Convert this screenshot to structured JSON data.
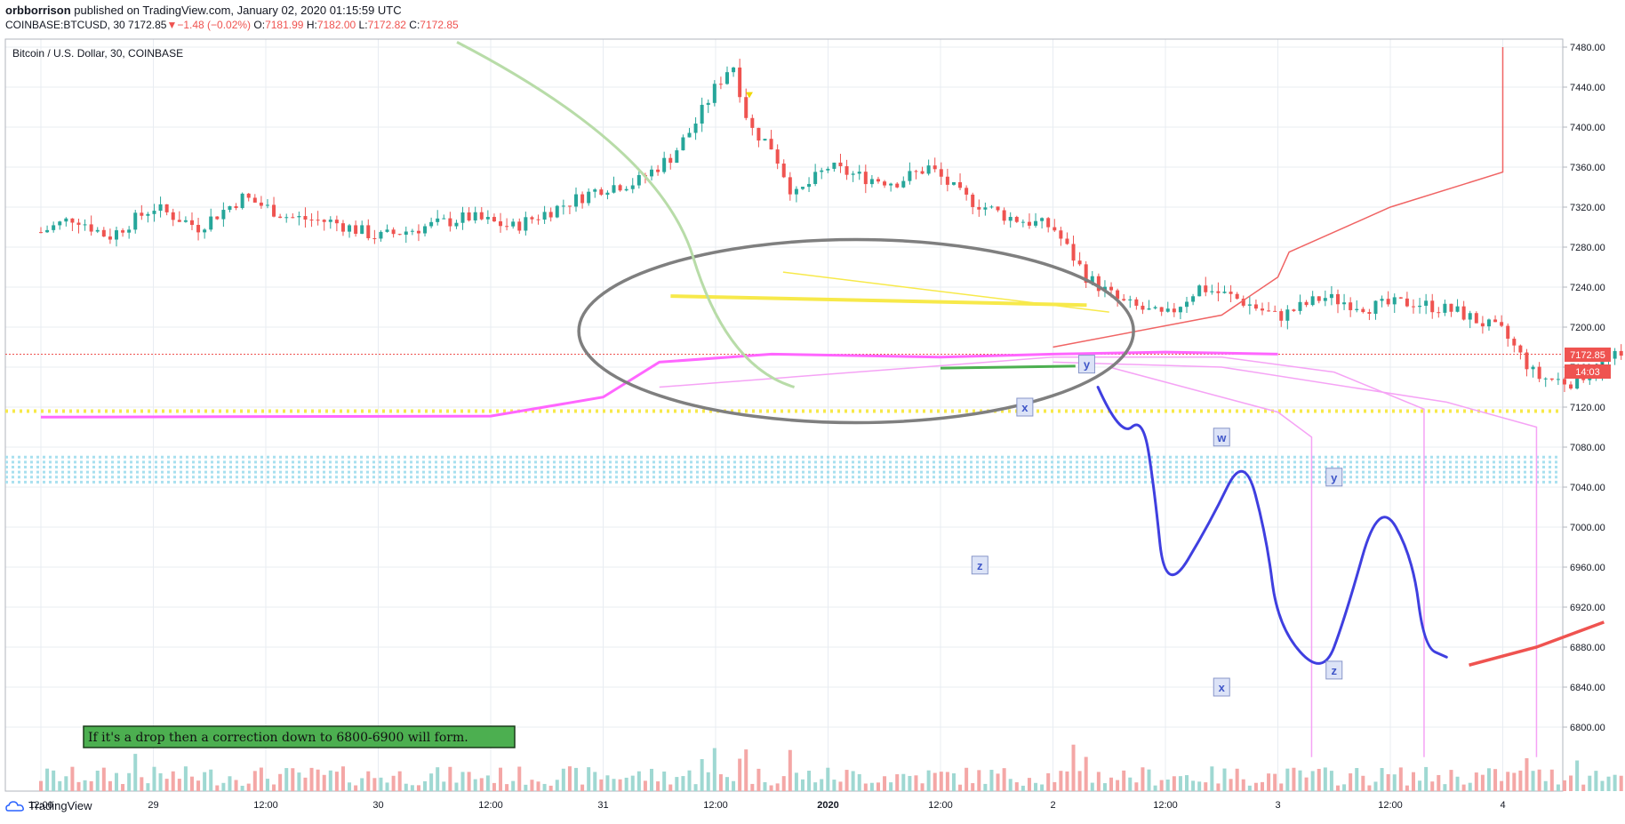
{
  "header": {
    "publisher": "orbborrison",
    "published_text": "published on TradingView.com, January 02, 2020 01:15:59 UTC",
    "symbol_line": "COINBASE:BTCUSD, 30",
    "last": "7172.85",
    "change": "−1.48 (−0.02%)",
    "o_label": "O:",
    "o_val": "7181.99",
    "h_label": "H:",
    "h_val": "7182.00",
    "l_label": "L:",
    "l_val": "7172.82",
    "c_label": "C:",
    "c_val": "7172.85"
  },
  "chart_title": "Bitcoin / U.S. Dollar, 30, COINBASE",
  "footer": {
    "brand": "TradingView"
  },
  "colors": {
    "up": "#26a69a",
    "down": "#ef5350",
    "grid": "#e8ecf2",
    "wave": "#3f3fe0",
    "ellipse": "#7f7f7f",
    "trend_yellow": "#f7e94a",
    "magenta": "#ff66ff",
    "red_curve": "#f06464",
    "green_line": "#4caf50"
  },
  "annotation": "If it's a drop then a correction down to 6800-6900 will form.",
  "wave_labels": [
    "x",
    "y",
    "z",
    "w",
    "x",
    "y",
    "z"
  ],
  "price_badge": {
    "price": "7172.85",
    "countdown": "14:03"
  },
  "chart_data": {
    "type": "candlestick",
    "symbol": "BTCUSD",
    "interval": "30",
    "y_ticks": [
      7480,
      7440,
      7400,
      7360,
      7320,
      7280,
      7240,
      7200,
      7160,
      7120,
      7080,
      7040,
      7000,
      6960,
      6920,
      6880,
      6840,
      6800
    ],
    "x_ticks": [
      "12:00",
      "29",
      "12:00",
      "30",
      "12:00",
      "31",
      "12:00",
      "2020",
      "12:00",
      "2",
      "12:00",
      "3",
      "12:00",
      "4"
    ],
    "ylim": [
      6765,
      7490
    ],
    "last_price": 7172.85,
    "dotted_support": 7116,
    "dotted_band": [
      7045,
      7070
    ],
    "close_path": [
      [
        0,
        7295
      ],
      [
        0.3,
        7310
      ],
      [
        0.6,
        7290
      ],
      [
        1.0,
        7320
      ],
      [
        1.4,
        7300
      ],
      [
        1.8,
        7330
      ],
      [
        2.2,
        7310
      ],
      [
        2.6,
        7305
      ],
      [
        3.0,
        7290
      ],
      [
        3.4,
        7300
      ],
      [
        3.8,
        7310
      ],
      [
        4.2,
        7300
      ],
      [
        4.6,
        7320
      ],
      [
        5.0,
        7340
      ],
      [
        5.3,
        7345
      ],
      [
        5.6,
        7370
      ],
      [
        5.8,
        7400
      ],
      [
        6.0,
        7440
      ],
      [
        6.15,
        7465
      ],
      [
        6.3,
        7400
      ],
      [
        6.5,
        7380
      ],
      [
        6.7,
        7330
      ],
      [
        7.0,
        7360
      ],
      [
        7.3,
        7350
      ],
      [
        7.6,
        7345
      ],
      [
        7.9,
        7360
      ],
      [
        8.2,
        7330
      ],
      [
        8.6,
        7310
      ],
      [
        9.0,
        7300
      ],
      [
        9.3,
        7250
      ],
      [
        9.6,
        7225
      ],
      [
        10.0,
        7210
      ],
      [
        10.3,
        7240
      ],
      [
        10.6,
        7230
      ],
      [
        11.0,
        7210
      ],
      [
        11.4,
        7230
      ],
      [
        11.8,
        7220
      ],
      [
        12.2,
        7225
      ],
      [
        12.6,
        7215
      ],
      [
        13.0,
        7195
      ],
      [
        13.3,
        7150
      ],
      [
        13.6,
        7145
      ],
      [
        14.0,
        7170
      ],
      [
        14.4,
        7160
      ],
      [
        14.7,
        7190
      ],
      [
        15.0,
        7210
      ],
      [
        15.4,
        7200
      ],
      [
        15.8,
        7190
      ],
      [
        16.2,
        7205
      ],
      [
        16.6,
        7210
      ],
      [
        17.0,
        7215
      ],
      [
        17.4,
        7220
      ],
      [
        17.8,
        7225
      ],
      [
        18.2,
        7200
      ],
      [
        18.5,
        7165
      ],
      [
        18.7,
        7172.85
      ]
    ],
    "trend_yellow_upper": [
      [
        6.6,
        7255
      ],
      [
        9.5,
        7215
      ]
    ],
    "trend_yellow_lower": [
      [
        5.6,
        7231
      ],
      [
        9.3,
        7222
      ]
    ],
    "green_support": [
      [
        8.0,
        7159
      ],
      [
        9.2,
        7161
      ]
    ],
    "red_supply_curve": [
      [
        9.0,
        7180
      ],
      [
        10.5,
        7212
      ],
      [
        11.0,
        7250
      ],
      [
        11.1,
        7275
      ],
      [
        12.0,
        7320
      ],
      [
        13.0,
        7355
      ],
      [
        13.0,
        7480
      ]
    ],
    "magenta_curve": [
      [
        0,
        7110
      ],
      [
        4,
        7111
      ],
      [
        5.0,
        7130
      ],
      [
        5.5,
        7165
      ],
      [
        6.5,
        7173
      ],
      [
        8.0,
        7170
      ],
      [
        9.0,
        7173
      ],
      [
        10.0,
        7175
      ],
      [
        11.0,
        7173
      ]
    ],
    "pink_upper": [
      [
        5.5,
        7140
      ],
      [
        9.0,
        7170
      ],
      [
        10.5,
        7170
      ],
      [
        11.5,
        7155
      ],
      [
        12.3,
        7118
      ],
      [
        12.3,
        6770
      ]
    ],
    "pink_lower": [
      [
        9.5,
        7160
      ],
      [
        10.5,
        7130
      ],
      [
        11.0,
        7115
      ],
      [
        11.3,
        7090
      ],
      [
        11.3,
        6770
      ]
    ],
    "pink_mid": [
      [
        9.0,
        7165
      ],
      [
        10.5,
        7160
      ],
      [
        12.5,
        7125
      ],
      [
        13.3,
        7100
      ],
      [
        13.3,
        6770
      ]
    ],
    "wave_path": [
      [
        9.4,
        7140
      ],
      [
        9.6,
        7090
      ],
      [
        9.8,
        7110
      ],
      [
        9.9,
        7040
      ],
      [
        10.0,
        6930
      ],
      [
        10.4,
        7005
      ],
      [
        10.7,
        7075
      ],
      [
        10.9,
        6990
      ],
      [
        11.0,
        6900
      ],
      [
        11.4,
        6850
      ],
      [
        11.6,
        6910
      ],
      [
        11.9,
        7030
      ],
      [
        12.2,
        6970
      ],
      [
        12.3,
        6880
      ],
      [
        12.5,
        6870
      ]
    ],
    "wave_tail_red": [
      [
        12.7,
        6862
      ],
      [
        13.3,
        6880
      ],
      [
        13.9,
        6905
      ]
    ]
  }
}
